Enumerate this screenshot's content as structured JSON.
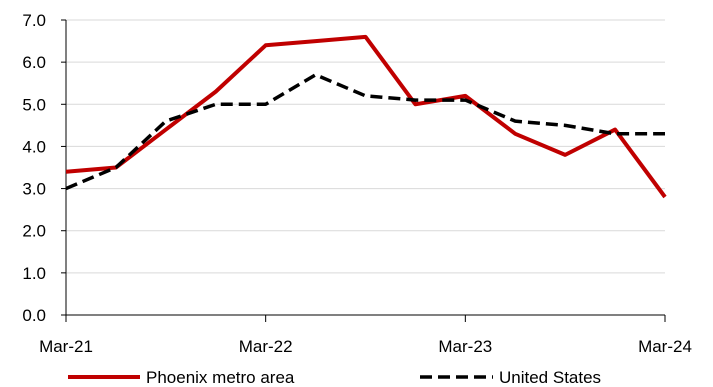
{
  "chart_data": {
    "type": "line",
    "x": [
      "Mar-21",
      "Jun-21",
      "Sep-21",
      "Dec-21",
      "Mar-22",
      "Jun-22",
      "Sep-22",
      "Dec-22",
      "Mar-23",
      "Jun-23",
      "Sep-23",
      "Dec-23",
      "Mar-24"
    ],
    "x_tick_labels": [
      "Mar-21",
      "Mar-22",
      "Mar-23",
      "Mar-24"
    ],
    "series": [
      {
        "name": "Phoenix metro area",
        "color": "#c00000",
        "style": "solid",
        "values": [
          3.4,
          3.5,
          4.4,
          5.3,
          6.4,
          6.5,
          6.6,
          5.0,
          5.2,
          4.3,
          3.8,
          4.4,
          2.8
        ]
      },
      {
        "name": "United States",
        "color": "#000000",
        "style": "dashed",
        "values": [
          3.0,
          3.5,
          4.6,
          5.0,
          5.0,
          5.7,
          5.2,
          5.1,
          5.1,
          4.6,
          4.5,
          4.3,
          4.3
        ]
      }
    ],
    "y_ticks": [
      "0.0",
      "1.0",
      "2.0",
      "3.0",
      "4.0",
      "5.0",
      "6.0",
      "7.0"
    ],
    "ylim": [
      0,
      7
    ],
    "grid": true,
    "legend_position": "bottom"
  }
}
